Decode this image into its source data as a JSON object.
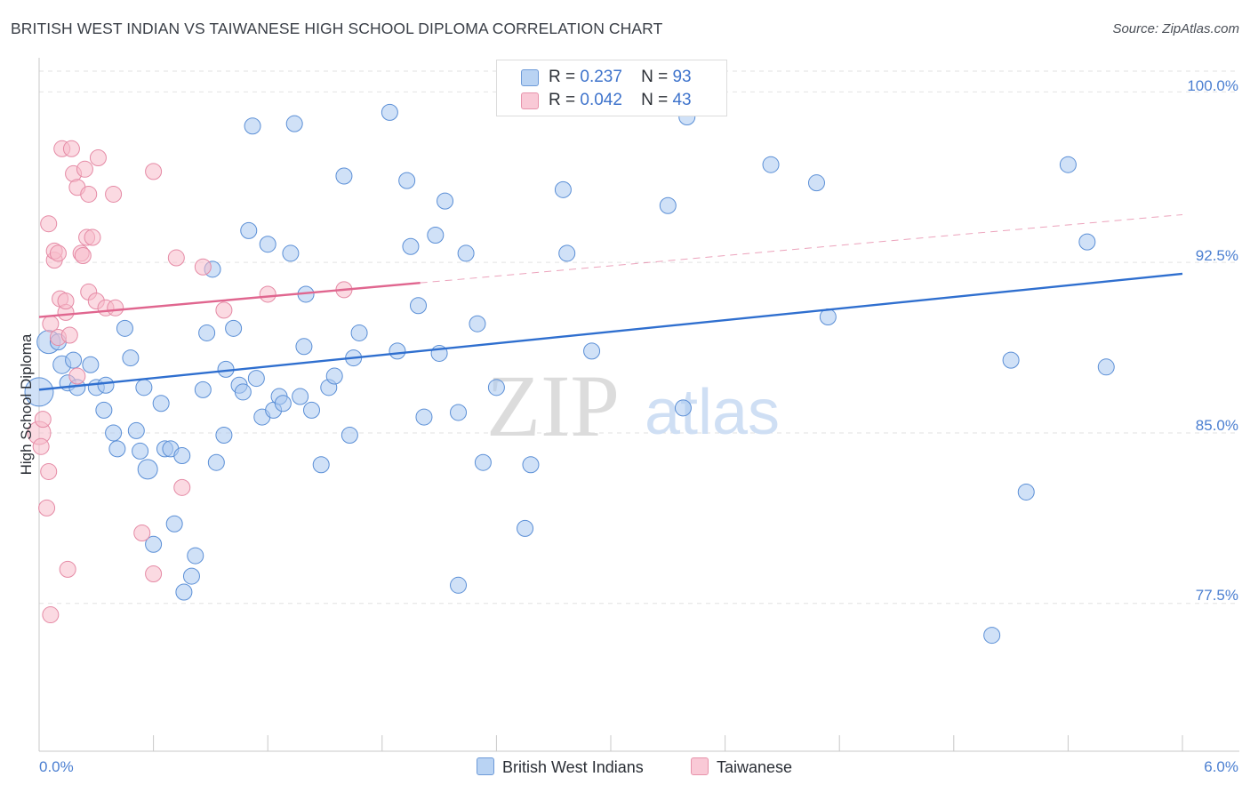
{
  "title": "BRITISH WEST INDIAN VS TAIWANESE HIGH SCHOOL DIPLOMA CORRELATION CHART",
  "source": "Source: ZipAtlas.com",
  "watermark": {
    "zip": "ZIP",
    "atlas": "atlas"
  },
  "colors": {
    "blue_fill": "#aac8f0",
    "blue_stroke": "#5b8fd6",
    "blue_line": "#2f6fcf",
    "pink_fill": "#f7bccb",
    "pink_stroke": "#e58aa5",
    "pink_line": "#e0668f",
    "tick_text": "#4b7fd1",
    "grid": "#e2e2e2"
  },
  "legend": {
    "series": [
      {
        "r_label": "R =",
        "r_value": "0.237",
        "n_label": "N =",
        "n_value": "93"
      },
      {
        "r_label": "R =",
        "r_value": "0.042",
        "n_label": "N =",
        "n_value": "43"
      }
    ]
  },
  "chart_data": {
    "type": "scatter",
    "title": "BRITISH WEST INDIAN VS TAIWANESE HIGH SCHOOL DIPLOMA CORRELATION CHART",
    "xlabel": "",
    "ylabel": "High School Diploma",
    "xlim": [
      0.0,
      6.0
    ],
    "ylim": [
      71.0,
      101.5
    ],
    "x_tick_labels": [
      "0.0%",
      "6.0%"
    ],
    "y_ticks": [
      77.5,
      85.0,
      92.5,
      100.0
    ],
    "y_tick_labels": [
      "77.5%",
      "85.0%",
      "92.5%",
      "100.0%"
    ],
    "grid": true,
    "series": [
      {
        "name": "British West Indians",
        "color": "blue",
        "trend": {
          "x0": 0.0,
          "y0": 86.9,
          "x1": 6.0,
          "y1": 92.0,
          "dashed_to": 6.0
        },
        "points": [
          [
            0.0,
            86.8,
            16
          ],
          [
            0.05,
            89.0,
            13
          ],
          [
            0.1,
            89.0,
            9
          ],
          [
            0.12,
            88.0,
            10
          ],
          [
            0.15,
            87.2,
            9
          ],
          [
            0.18,
            88.2,
            9
          ],
          [
            0.2,
            87.0,
            9
          ],
          [
            0.27,
            88.0,
            9
          ],
          [
            0.3,
            87.0,
            9
          ],
          [
            0.35,
            87.1,
            9
          ],
          [
            0.34,
            86.0,
            9
          ],
          [
            0.39,
            85.0,
            9
          ],
          [
            0.41,
            84.3,
            9
          ],
          [
            0.45,
            89.6,
            9
          ],
          [
            0.48,
            88.3,
            9
          ],
          [
            0.51,
            85.1,
            9
          ],
          [
            0.53,
            84.2,
            9
          ],
          [
            0.55,
            87.0,
            9
          ],
          [
            0.57,
            83.4,
            11
          ],
          [
            0.6,
            80.1,
            9
          ],
          [
            0.64,
            86.3,
            9
          ],
          [
            0.66,
            84.3,
            9
          ],
          [
            0.69,
            84.3,
            9
          ],
          [
            0.71,
            81.0,
            9
          ],
          [
            0.75,
            84.0,
            9
          ],
          [
            0.76,
            78.0,
            9
          ],
          [
            0.8,
            78.7,
            9
          ],
          [
            0.82,
            79.6,
            9
          ],
          [
            0.86,
            86.9,
            9
          ],
          [
            0.88,
            89.4,
            9
          ],
          [
            0.91,
            92.2,
            9
          ],
          [
            0.93,
            83.7,
            9
          ],
          [
            0.97,
            84.9,
            9
          ],
          [
            0.98,
            87.8,
            9
          ],
          [
            1.02,
            89.6,
            9
          ],
          [
            1.05,
            87.1,
            9
          ],
          [
            1.07,
            86.8,
            9
          ],
          [
            1.1,
            93.9,
            9
          ],
          [
            1.12,
            98.5,
            9
          ],
          [
            1.14,
            87.4,
            9
          ],
          [
            1.17,
            85.7,
            9
          ],
          [
            1.2,
            93.3,
            9
          ],
          [
            1.23,
            86.0,
            9
          ],
          [
            1.26,
            86.6,
            9
          ],
          [
            1.28,
            86.3,
            9
          ],
          [
            1.32,
            92.9,
            9
          ],
          [
            1.34,
            98.6,
            9
          ],
          [
            1.37,
            86.6,
            9
          ],
          [
            1.39,
            88.8,
            9
          ],
          [
            1.4,
            91.1,
            9
          ],
          [
            1.43,
            86.0,
            9
          ],
          [
            1.48,
            83.6,
            9
          ],
          [
            1.52,
            87.0,
            9
          ],
          [
            1.55,
            87.5,
            9
          ],
          [
            1.6,
            96.3,
            9
          ],
          [
            1.63,
            84.9,
            9
          ],
          [
            1.65,
            88.3,
            9
          ],
          [
            1.68,
            89.4,
            9
          ],
          [
            1.84,
            99.1,
            9
          ],
          [
            1.88,
            88.6,
            9
          ],
          [
            1.93,
            96.1,
            9
          ],
          [
            1.95,
            93.2,
            9
          ],
          [
            1.99,
            90.6,
            9
          ],
          [
            2.02,
            85.7,
            9
          ],
          [
            2.08,
            93.7,
            9
          ],
          [
            2.1,
            88.5,
            9
          ],
          [
            2.13,
            95.2,
            9
          ],
          [
            2.2,
            85.9,
            9
          ],
          [
            2.24,
            92.9,
            9
          ],
          [
            2.3,
            89.8,
            9
          ],
          [
            2.33,
            83.7,
            9
          ],
          [
            2.4,
            87.0,
            9
          ],
          [
            2.55,
            80.8,
            9
          ],
          [
            2.58,
            83.6,
            9
          ],
          [
            2.75,
            95.7,
            9
          ],
          [
            2.77,
            92.9,
            9
          ],
          [
            2.9,
            88.6,
            9
          ],
          [
            3.3,
            95.0,
            9
          ],
          [
            3.38,
            86.1,
            9
          ],
          [
            3.4,
            98.9,
            9
          ],
          [
            3.84,
            96.8,
            9
          ],
          [
            4.08,
            96.0,
            9
          ],
          [
            4.14,
            90.1,
            9
          ],
          [
            5.0,
            76.1,
            9
          ],
          [
            5.1,
            88.2,
            9
          ],
          [
            5.18,
            82.4,
            9
          ],
          [
            5.4,
            96.8,
            9
          ],
          [
            5.5,
            93.4,
            9
          ],
          [
            5.6,
            87.9,
            9
          ],
          [
            2.2,
            78.3,
            9
          ]
        ]
      },
      {
        "name": "Taiwanese",
        "color": "pink",
        "trend": {
          "x0": 0.0,
          "y0": 90.1,
          "x1": 2.0,
          "y1": 91.6,
          "dashed_to": 6.0
        },
        "points": [
          [
            0.0,
            85.0,
            13
          ],
          [
            0.01,
            84.4,
            9
          ],
          [
            0.02,
            85.6,
            9
          ],
          [
            0.04,
            81.7,
            9
          ],
          [
            0.05,
            83.3,
            9
          ],
          [
            0.05,
            94.2,
            9
          ],
          [
            0.06,
            89.8,
            9
          ],
          [
            0.08,
            92.6,
            9
          ],
          [
            0.08,
            93.0,
            9
          ],
          [
            0.1,
            89.2,
            9
          ],
          [
            0.1,
            92.9,
            9
          ],
          [
            0.11,
            90.9,
            9
          ],
          [
            0.12,
            97.5,
            9
          ],
          [
            0.14,
            90.3,
            9
          ],
          [
            0.14,
            90.8,
            9
          ],
          [
            0.15,
            79.0,
            9
          ],
          [
            0.17,
            97.5,
            9
          ],
          [
            0.18,
            96.4,
            9
          ],
          [
            0.2,
            87.5,
            9
          ],
          [
            0.2,
            95.8,
            9
          ],
          [
            0.22,
            92.9,
            9
          ],
          [
            0.23,
            92.8,
            9
          ],
          [
            0.24,
            96.6,
            9
          ],
          [
            0.25,
            93.6,
            9
          ],
          [
            0.26,
            91.2,
            9
          ],
          [
            0.26,
            95.5,
            9
          ],
          [
            0.28,
            93.6,
            9
          ],
          [
            0.3,
            90.8,
            9
          ],
          [
            0.31,
            97.1,
            9
          ],
          [
            0.35,
            90.5,
            9
          ],
          [
            0.4,
            90.5,
            9
          ],
          [
            0.39,
            95.5,
            9
          ],
          [
            0.54,
            80.6,
            9
          ],
          [
            0.6,
            78.8,
            9
          ],
          [
            0.6,
            96.5,
            9
          ],
          [
            0.72,
            92.7,
            9
          ],
          [
            0.75,
            82.6,
            9
          ],
          [
            0.86,
            92.3,
            9
          ],
          [
            0.97,
            90.4,
            9
          ],
          [
            1.2,
            91.1,
            9
          ],
          [
            1.6,
            91.3,
            9
          ],
          [
            0.06,
            77.0,
            9
          ],
          [
            0.16,
            89.3,
            9
          ]
        ]
      }
    ]
  }
}
